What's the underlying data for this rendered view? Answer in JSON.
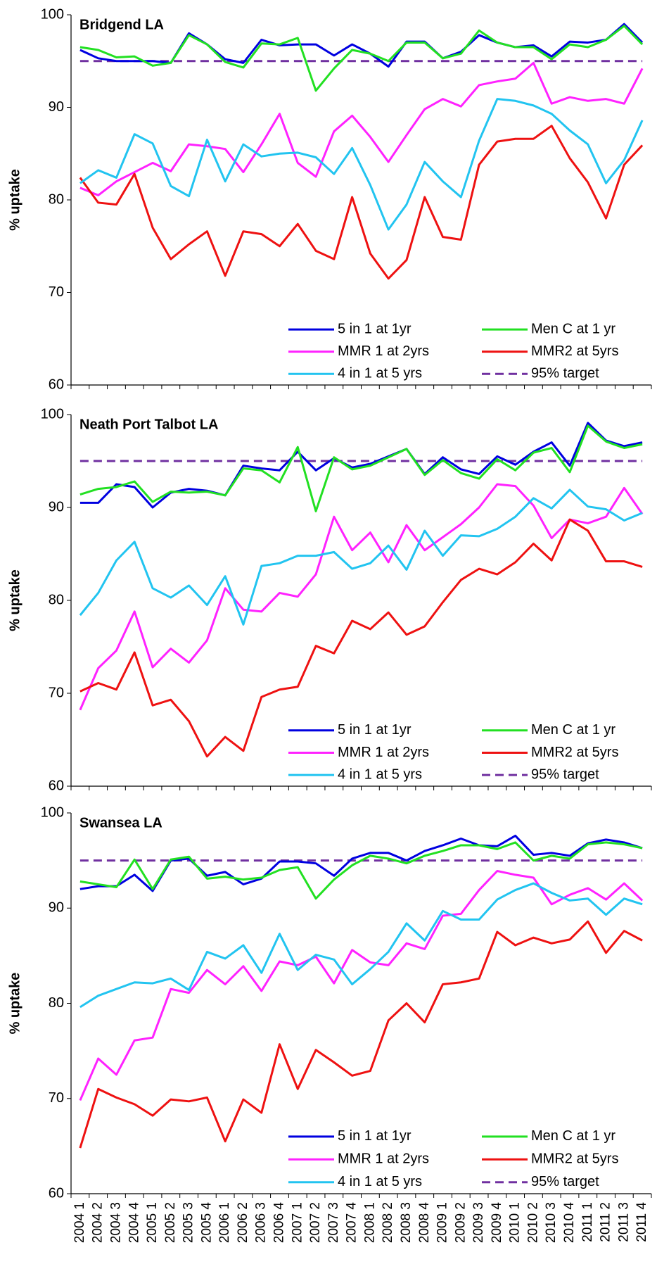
{
  "chart_data": [
    {
      "type": "line",
      "title": "Bridgend LA",
      "y_label": "% uptake",
      "ylim": [
        60,
        100
      ],
      "yticks": [
        60,
        70,
        80,
        90,
        100
      ],
      "series": [
        {
          "name": "5 in 1 at 1yr",
          "color": "#0000e0",
          "values": [
            96.2,
            95.3,
            95.0,
            95.0,
            95.0,
            94.8,
            98.0,
            96.8,
            95.2,
            94.8,
            97.3,
            96.7,
            96.8,
            96.8,
            95.6,
            96.8,
            95.8,
            94.4,
            97.1,
            97.1,
            95.3,
            96.0,
            97.8,
            97.0,
            96.5,
            96.7,
            95.5,
            97.1,
            97.0,
            97.3,
            99.0,
            97.0
          ]
        },
        {
          "name": "Men C at 1 yr",
          "color": "#22e022",
          "values": [
            96.5,
            96.2,
            95.4,
            95.5,
            94.5,
            94.8,
            97.8,
            96.8,
            94.9,
            94.3,
            96.9,
            96.8,
            97.5,
            91.8,
            94.2,
            96.2,
            95.8,
            95.0,
            97.0,
            97.0,
            95.3,
            95.8,
            98.3,
            97.0,
            96.5,
            96.5,
            95.2,
            96.8,
            96.5,
            97.3,
            98.8,
            96.8
          ]
        },
        {
          "name": "MMR 1 at 2yrs",
          "color": "#ff22ff",
          "values": [
            81.3,
            80.5,
            82.0,
            83.0,
            84.0,
            83.1,
            86.0,
            85.8,
            85.5,
            83.0,
            86.0,
            89.3,
            84.0,
            82.5,
            87.4,
            89.1,
            86.8,
            84.1,
            87.0,
            89.8,
            90.9,
            90.1,
            92.4,
            92.8,
            93.1,
            94.8,
            90.4,
            91.1,
            90.7,
            90.9,
            90.4,
            94.2
          ]
        },
        {
          "name": "MMR2 at 5yrs",
          "color": "#ee1111",
          "values": [
            82.4,
            79.7,
            79.5,
            82.8,
            77.0,
            73.6,
            75.2,
            76.6,
            71.8,
            76.6,
            76.3,
            75.0,
            77.4,
            74.5,
            73.6,
            80.3,
            74.2,
            71.5,
            73.5,
            80.3,
            76.0,
            75.7,
            83.8,
            86.3,
            86.6,
            86.6,
            88.0,
            84.5,
            81.9,
            78.0,
            83.8,
            85.9
          ]
        },
        {
          "name": "4 in 1 at 5 yrs",
          "color": "#22c4f0",
          "values": [
            81.8,
            83.2,
            82.4,
            87.1,
            86.1,
            81.5,
            80.4,
            86.5,
            82.0,
            86.0,
            84.7,
            85.0,
            85.1,
            84.6,
            82.8,
            85.6,
            81.6,
            76.8,
            79.5,
            84.1,
            82.0,
            80.3,
            86.4,
            90.9,
            90.7,
            90.2,
            89.3,
            87.5,
            86.0,
            81.8,
            84.3,
            88.6
          ]
        }
      ],
      "target": {
        "name": "95% target",
        "value": 95,
        "color": "#7030a0"
      }
    },
    {
      "type": "line",
      "title": "Neath Port Talbot LA",
      "y_label": "% uptake",
      "ylim": [
        60,
        100
      ],
      "yticks": [
        60,
        70,
        80,
        90,
        100
      ],
      "series": [
        {
          "name": "5 in 1 at 1yr",
          "color": "#0000e0",
          "values": [
            90.5,
            90.5,
            92.5,
            92.2,
            90.0,
            91.6,
            92.0,
            91.8,
            91.3,
            94.5,
            94.2,
            94.0,
            96.0,
            94.0,
            95.3,
            94.3,
            94.7,
            95.5,
            96.3,
            93.6,
            95.4,
            94.1,
            93.6,
            95.5,
            94.6,
            96.0,
            97.0,
            94.5,
            99.1,
            97.2,
            96.6,
            97.0
          ]
        },
        {
          "name": "Men C at 1 yr",
          "color": "#22e022",
          "values": [
            91.4,
            92.0,
            92.2,
            92.8,
            90.6,
            91.7,
            91.6,
            91.7,
            91.3,
            94.2,
            94.0,
            92.7,
            96.5,
            89.6,
            95.4,
            94.1,
            94.5,
            95.4,
            96.3,
            93.5,
            95.1,
            93.7,
            93.1,
            95.2,
            94.0,
            95.9,
            96.4,
            93.8,
            98.8,
            97.1,
            96.4,
            96.8
          ]
        },
        {
          "name": "MMR 1 at 2yrs",
          "color": "#ff22ff",
          "values": [
            68.2,
            72.7,
            74.6,
            78.8,
            72.8,
            74.8,
            73.3,
            75.7,
            81.3,
            79.0,
            78.8,
            80.8,
            80.4,
            82.8,
            89.0,
            85.4,
            87.3,
            84.1,
            88.1,
            85.4,
            86.8,
            88.2,
            90.0,
            92.5,
            92.3,
            90.2,
            86.7,
            88.7,
            88.3,
            89.0,
            92.1,
            89.3
          ]
        },
        {
          "name": "MMR2 at 5yrs",
          "color": "#ee1111",
          "values": [
            70.2,
            71.1,
            70.4,
            74.4,
            68.7,
            69.3,
            67.0,
            63.2,
            65.3,
            63.8,
            69.6,
            70.4,
            70.7,
            75.1,
            74.3,
            77.8,
            76.9,
            78.7,
            76.3,
            77.2,
            79.8,
            82.2,
            83.4,
            82.8,
            84.1,
            86.1,
            84.3,
            88.7,
            87.5,
            84.2,
            84.2,
            83.6
          ]
        },
        {
          "name": "4 in 1 at 5 yrs",
          "color": "#22c4f0",
          "values": [
            78.4,
            80.8,
            84.3,
            86.3,
            81.3,
            80.3,
            81.6,
            79.5,
            82.6,
            77.4,
            83.7,
            84.0,
            84.8,
            84.8,
            85.2,
            83.4,
            84.0,
            85.9,
            83.3,
            87.5,
            84.8,
            87.0,
            86.9,
            87.7,
            89.0,
            91.0,
            89.9,
            91.9,
            90.1,
            89.8,
            88.6,
            89.4
          ]
        }
      ],
      "target": {
        "name": "95% target",
        "value": 95,
        "color": "#7030a0"
      }
    },
    {
      "type": "line",
      "title": "Swansea LA",
      "y_label": "% uptake",
      "ylim": [
        60,
        100
      ],
      "yticks": [
        60,
        70,
        80,
        90,
        100
      ],
      "categories": [
        "2004 1",
        "2004 2",
        "2004 3",
        "2004 4",
        "2005 1",
        "2005 2",
        "2005 3",
        "2005 4",
        "2006 1",
        "2006 2",
        "2006 3",
        "2006 4",
        "2007 1",
        "2007 2",
        "2007 3",
        "2007 4",
        "2008 1",
        "2008 2",
        "2008 3",
        "2008 4",
        "2009 1",
        "2009 2",
        "2009 3",
        "2009 4",
        "2010 1",
        "2010 2",
        "2010 3",
        "2010 4",
        "2011 1",
        "2011 2",
        "2011 3",
        "2011 4"
      ],
      "series": [
        {
          "name": "5 in 1 at 1yr",
          "color": "#0000e0",
          "values": [
            92.0,
            92.3,
            92.3,
            93.5,
            91.8,
            95.0,
            95.2,
            93.4,
            93.8,
            92.5,
            93.1,
            94.9,
            94.9,
            94.7,
            93.4,
            95.2,
            95.8,
            95.8,
            95.0,
            96.0,
            96.6,
            97.3,
            96.6,
            96.5,
            97.6,
            95.6,
            95.8,
            95.5,
            96.8,
            97.2,
            96.9,
            96.3
          ]
        },
        {
          "name": "Men C at 1 yr",
          "color": "#22e022",
          "values": [
            92.8,
            92.5,
            92.2,
            95.1,
            92.0,
            95.1,
            95.4,
            93.1,
            93.3,
            93.0,
            93.2,
            94.0,
            94.3,
            91.0,
            93.0,
            94.5,
            95.5,
            95.2,
            94.7,
            95.5,
            96.0,
            96.6,
            96.6,
            96.2,
            96.9,
            95.0,
            95.5,
            95.2,
            96.7,
            96.9,
            96.7,
            96.3
          ]
        },
        {
          "name": "MMR 1 at 2yrs",
          "color": "#ff22ff",
          "values": [
            69.8,
            74.2,
            72.5,
            76.1,
            76.4,
            81.5,
            81.1,
            83.5,
            82.0,
            83.9,
            81.3,
            84.4,
            84.0,
            84.9,
            82.1,
            85.6,
            84.3,
            84.0,
            86.3,
            85.7,
            89.2,
            89.4,
            91.9,
            93.9,
            93.5,
            93.2,
            90.4,
            91.4,
            92.1,
            90.9,
            92.6,
            90.8
          ]
        },
        {
          "name": "MMR2 at 5yrs",
          "color": "#ee1111",
          "values": [
            64.8,
            71.0,
            70.1,
            69.4,
            68.2,
            69.9,
            69.7,
            70.1,
            65.5,
            69.9,
            68.5,
            75.7,
            71.0,
            75.1,
            73.8,
            72.4,
            72.9,
            78.2,
            80.0,
            78.0,
            82.0,
            82.2,
            82.6,
            87.5,
            86.1,
            86.9,
            86.3,
            86.7,
            88.6,
            85.3,
            87.6,
            86.6
          ]
        },
        {
          "name": "4 in 1 at 5 yrs",
          "color": "#22c4f0",
          "values": [
            79.6,
            80.8,
            81.5,
            82.2,
            82.1,
            82.6,
            81.4,
            85.4,
            84.7,
            86.1,
            83.2,
            87.3,
            83.5,
            85.1,
            84.6,
            82.0,
            83.6,
            85.4,
            88.4,
            86.6,
            89.7,
            88.8,
            88.8,
            90.9,
            91.9,
            92.6,
            91.6,
            90.8,
            91.0,
            89.3,
            91.0,
            90.4
          ]
        }
      ],
      "target": {
        "name": "95% target",
        "value": 95,
        "color": "#7030a0"
      }
    }
  ]
}
